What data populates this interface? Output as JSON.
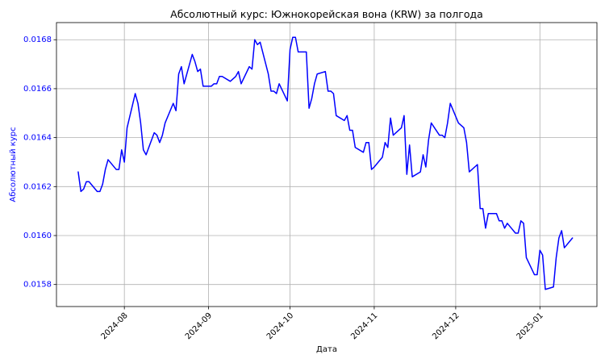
{
  "chart_data": {
    "type": "line",
    "title": "Абсолютный курс: Южнокорейская вона (KRW) за полгода",
    "xlabel": "Дата",
    "ylabel": "Абсолютный курс",
    "grid": true,
    "xlim": [
      "2024-07-07",
      "2025-01-22"
    ],
    "ylim": [
      0.01571,
      0.01687
    ],
    "x_ticks": [
      {
        "date": "2024-08-01",
        "label": "2024-08"
      },
      {
        "date": "2024-09-01",
        "label": "2024-09"
      },
      {
        "date": "2024-10-01",
        "label": "2024-10"
      },
      {
        "date": "2024-11-01",
        "label": "2024-11"
      },
      {
        "date": "2024-12-01",
        "label": "2024-12"
      },
      {
        "date": "2025-01-01",
        "label": "2025-01"
      }
    ],
    "y_ticks": [
      {
        "value": 0.0158,
        "label": "0.0158"
      },
      {
        "value": 0.016,
        "label": "0.0160"
      },
      {
        "value": 0.0162,
        "label": "0.0162"
      },
      {
        "value": 0.0164,
        "label": "0.0164"
      },
      {
        "value": 0.0166,
        "label": "0.0166"
      },
      {
        "value": 0.0168,
        "label": "0.0168"
      }
    ],
    "colors": {
      "line": "#0000ff",
      "ylabel": "#0000ff",
      "ytick": "#0000ff",
      "grid": "#b0b0b0"
    },
    "series": [
      {
        "x": [
          "2024-07-15",
          "2024-07-16",
          "2024-07-17",
          "2024-07-18",
          "2024-07-19",
          "2024-07-22",
          "2024-07-23",
          "2024-07-24",
          "2024-07-25",
          "2024-07-26",
          "2024-07-29",
          "2024-07-30",
          "2024-07-31",
          "2024-08-01",
          "2024-08-02",
          "2024-08-05",
          "2024-08-06",
          "2024-08-07",
          "2024-08-08",
          "2024-08-09",
          "2024-08-12",
          "2024-08-13",
          "2024-08-14",
          "2024-08-15",
          "2024-08-16",
          "2024-08-19",
          "2024-08-20",
          "2024-08-21",
          "2024-08-22",
          "2024-08-23",
          "2024-08-26",
          "2024-08-27",
          "2024-08-28",
          "2024-08-29",
          "2024-08-30",
          "2024-09-02",
          "2024-09-03",
          "2024-09-04",
          "2024-09-05",
          "2024-09-06",
          "2024-09-09",
          "2024-09-10",
          "2024-09-11",
          "2024-09-12",
          "2024-09-13",
          "2024-09-16",
          "2024-09-17",
          "2024-09-18",
          "2024-09-19",
          "2024-09-20",
          "2024-09-23",
          "2024-09-24",
          "2024-09-25",
          "2024-09-26",
          "2024-09-27",
          "2024-09-30",
          "2024-10-01",
          "2024-10-02",
          "2024-10-03",
          "2024-10-04",
          "2024-10-07",
          "2024-10-08",
          "2024-10-09",
          "2024-10-10",
          "2024-10-11",
          "2024-10-14",
          "2024-10-15",
          "2024-10-16",
          "2024-10-17",
          "2024-10-18",
          "2024-10-21",
          "2024-10-22",
          "2024-10-23",
          "2024-10-24",
          "2024-10-25",
          "2024-10-28",
          "2024-10-29",
          "2024-10-30",
          "2024-10-31",
          "2024-11-01",
          "2024-11-04",
          "2024-11-05",
          "2024-11-06",
          "2024-11-07",
          "2024-11-08",
          "2024-11-11",
          "2024-11-12",
          "2024-11-13",
          "2024-11-14",
          "2024-11-15",
          "2024-11-18",
          "2024-11-19",
          "2024-11-20",
          "2024-11-21",
          "2024-11-22",
          "2024-11-25",
          "2024-11-26",
          "2024-11-27",
          "2024-11-28",
          "2024-11-29",
          "2024-12-02",
          "2024-12-03",
          "2024-12-04",
          "2024-12-05",
          "2024-12-06",
          "2024-12-09",
          "2024-12-10",
          "2024-12-11",
          "2024-12-12",
          "2024-12-13",
          "2024-12-16",
          "2024-12-17",
          "2024-12-18",
          "2024-12-19",
          "2024-12-20",
          "2024-12-23",
          "2024-12-24",
          "2024-12-25",
          "2024-12-26",
          "2024-12-27",
          "2024-12-30",
          "2024-12-31",
          "2025-01-01",
          "2025-01-02",
          "2025-01-03",
          "2025-01-06",
          "2025-01-07",
          "2025-01-08",
          "2025-01-09",
          "2025-01-10",
          "2025-01-13"
        ],
        "y": [
          0.01626,
          0.01618,
          0.01619,
          0.01622,
          0.01622,
          0.01618,
          0.01618,
          0.01621,
          0.01627,
          0.01631,
          0.01627,
          0.01627,
          0.01635,
          0.0163,
          0.01644,
          0.01658,
          0.01654,
          0.01646,
          0.01635,
          0.01633,
          0.01642,
          0.01641,
          0.01638,
          0.01641,
          0.01646,
          0.01654,
          0.01651,
          0.01666,
          0.01669,
          0.01662,
          0.01674,
          0.01671,
          0.01667,
          0.01668,
          0.01661,
          0.01661,
          0.01662,
          0.01662,
          0.01665,
          0.01665,
          0.01663,
          0.01664,
          0.01665,
          0.01667,
          0.01662,
          0.01669,
          0.01668,
          0.0168,
          0.01678,
          0.01679,
          0.01666,
          0.01659,
          0.01659,
          0.01658,
          0.01662,
          0.01655,
          0.01676,
          0.01681,
          0.01681,
          0.01675,
          0.01675,
          0.01652,
          0.01656,
          0.01662,
          0.01666,
          0.01667,
          0.01659,
          0.01659,
          0.01658,
          0.01649,
          0.01647,
          0.01649,
          0.01643,
          0.01643,
          0.01636,
          0.01634,
          0.01638,
          0.01638,
          0.01627,
          0.01628,
          0.01632,
          0.01638,
          0.01636,
          0.01648,
          0.01641,
          0.01644,
          0.01649,
          0.01625,
          0.01637,
          0.01624,
          0.01626,
          0.01633,
          0.01628,
          0.01639,
          0.01646,
          0.01641,
          0.01641,
          0.0164,
          0.01646,
          0.01654,
          0.01646,
          0.01645,
          0.01644,
          0.01638,
          0.01626,
          0.01629,
          0.01611,
          0.01611,
          0.01603,
          0.01609,
          0.01609,
          0.01606,
          0.01606,
          0.01603,
          0.01605,
          0.01601,
          0.01601,
          0.01606,
          0.01605,
          0.01591,
          0.01584,
          0.01584,
          0.01594,
          0.01592,
          0.01578,
          0.01579,
          0.01591,
          0.01599,
          0.01602,
          0.01595,
          0.01599
        ]
      }
    ]
  }
}
